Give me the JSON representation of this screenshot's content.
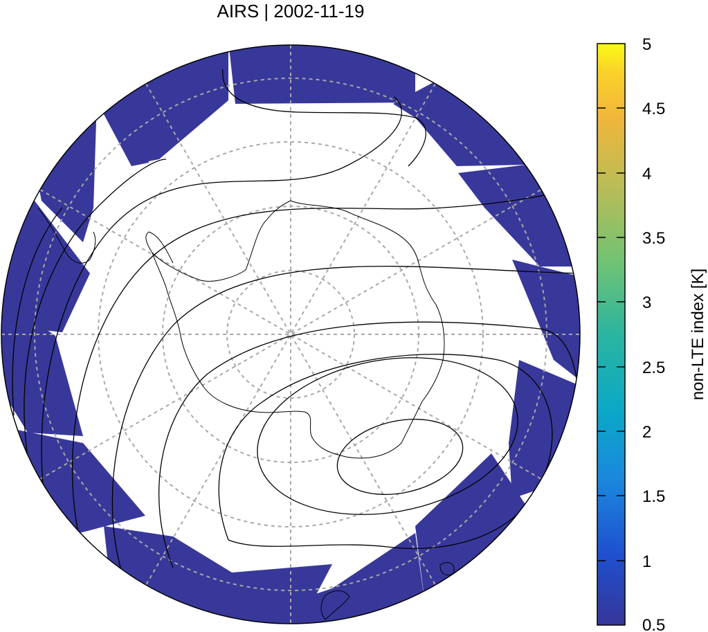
{
  "title": "AIRS | 2002-11-19",
  "colorbar": {
    "label": "non-LTE index [K]",
    "ticks": [
      "5",
      "4.5",
      "4",
      "3.5",
      "3",
      "2.5",
      "2",
      "1.5",
      "1",
      "0.5"
    ],
    "range": [
      0.5,
      5
    ],
    "colors": [
      "#3a3a9a",
      "#1f60d8",
      "#0d9ad0",
      "#2bb3a3",
      "#6ec275",
      "#b6bf56",
      "#e8b53a",
      "#fbd22a",
      "#f8fa1b"
    ]
  },
  "swath_color": "#38389a",
  "grid_color": "#a8a8a8",
  "contour_color": "#000000"
}
